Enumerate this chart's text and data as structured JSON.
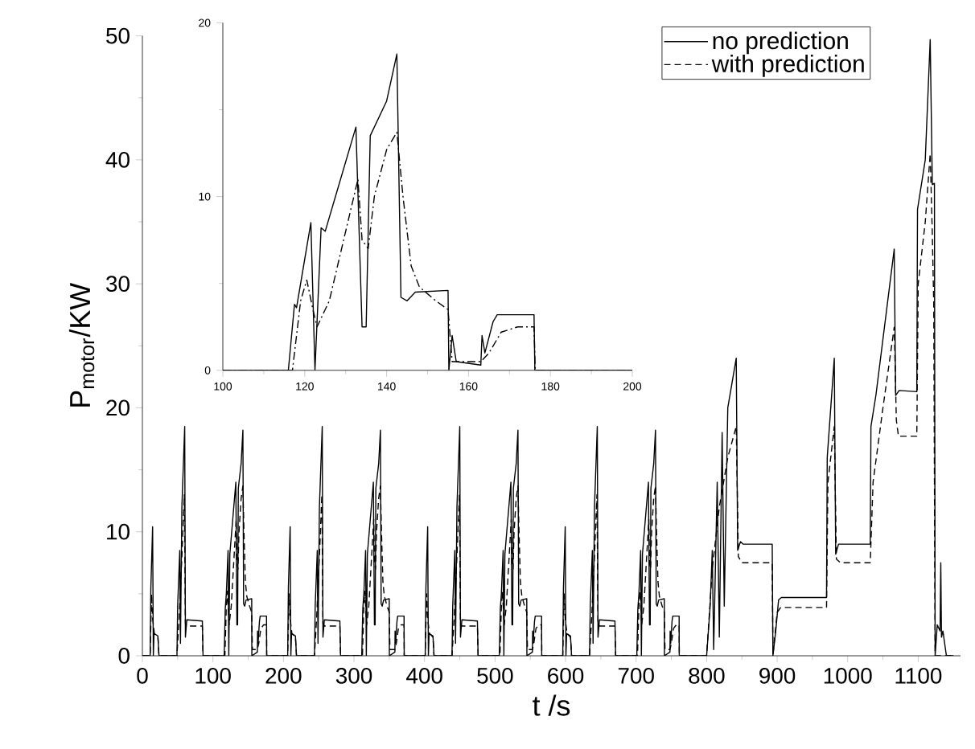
{
  "chart_data": [
    {
      "type": "line",
      "xlabel": "t /s",
      "ylabel": "P$_{motor}$/KW",
      "xlim": [
        0,
        1160
      ],
      "ylim": [
        0,
        50
      ],
      "xticks": [
        0,
        100,
        200,
        300,
        400,
        500,
        600,
        700,
        800,
        900,
        1000,
        1100
      ],
      "yticks": [
        0,
        10,
        20,
        30,
        40,
        50
      ],
      "legend": "top right",
      "grid": false,
      "series": [
        {
          "name": "no prediction",
          "color": "#000000",
          "line_style": "solid",
          "x": [
            0,
            11,
            12,
            14.5,
            15.5,
            16.5,
            22,
            23.5,
            49,
            50,
            53,
            54,
            56,
            60,
            61,
            63,
            85,
            86,
            116,
            117.5,
            119,
            121.5,
            122.5,
            124,
            132.5,
            134,
            135,
            136,
            140,
            142.5,
            143.5,
            145,
            147,
            155,
            155.2,
            163,
            163.3,
            164,
            166,
            167,
            176,
            176.2,
            195,
            206,
            207,
            209.5,
            210.5,
            211.5,
            217,
            218.5,
            244,
            245,
            248,
            249,
            251,
            255,
            256,
            258,
            280,
            281,
            311,
            312.5,
            314,
            316.5,
            317.5,
            319,
            327.5,
            329,
            330,
            331,
            335,
            337.5,
            338.5,
            340,
            342,
            350,
            350.2,
            358,
            358.3,
            359,
            361,
            362,
            371,
            371.2,
            390,
            401,
            402,
            404.5,
            405.5,
            406.5,
            412,
            413.5,
            439,
            440,
            443,
            444,
            446,
            450,
            451,
            453,
            475,
            476,
            506,
            507.5,
            509,
            511.5,
            512.5,
            514,
            522.5,
            524,
            525,
            526,
            530,
            532.5,
            533.5,
            535,
            537,
            545,
            545.2,
            553,
            553.3,
            554,
            556,
            557,
            566,
            566.2,
            585,
            596,
            597,
            599.5,
            600.5,
            601.5,
            607,
            608.5,
            634,
            635,
            638,
            639,
            641,
            645,
            646,
            648,
            670,
            671,
            701,
            702.5,
            704,
            706.5,
            707.5,
            709,
            717.5,
            719,
            720,
            721,
            725,
            727.5,
            728.5,
            730,
            732,
            740,
            740.2,
            748,
            748.3,
            749,
            751,
            752,
            761,
            761.2,
            780,
            800,
            805,
            808,
            810,
            815,
            818,
            822,
            825,
            830,
            842,
            844,
            848,
            852,
            893,
            894,
            898,
            902,
            906,
            970,
            971,
            981,
            983,
            987,
            1032,
            1033,
            1040,
            1066,
            1068,
            1073,
            1098,
            1099,
            1110,
            1117,
            1120,
            1123,
            1124,
            1127,
            1131,
            1132,
            1133,
            1135,
            1140,
            1150
          ],
          "values": [
            0,
            0,
            5.5,
            10.4,
            0,
            1.8,
            1.6,
            0,
            0,
            4,
            8.5,
            1,
            12,
            18.5,
            1.5,
            2.9,
            2.8,
            0,
            0,
            3.8,
            5,
            8.5,
            0,
            8.2,
            14,
            2.5,
            2.5,
            13.5,
            15.5,
            18.2,
            4.2,
            4.0,
            4.5,
            4.6,
            0,
            0.3,
            2,
            1,
            2.8,
            3.2,
            3.2,
            0,
            0,
            0,
            5.5,
            10.4,
            0,
            1.8,
            1.6,
            0,
            0,
            4,
            8.5,
            1,
            12,
            18.5,
            1.5,
            2.9,
            2.8,
            0,
            0,
            3.8,
            5,
            8.5,
            0,
            8.2,
            14,
            2.5,
            2.5,
            13.5,
            15.5,
            18.2,
            4.2,
            4.0,
            4.5,
            4.6,
            0,
            0.3,
            2,
            1,
            2.8,
            3.2,
            3.2,
            0,
            0,
            0,
            5.5,
            10.4,
            0,
            1.8,
            1.6,
            0,
            0,
            4,
            8.5,
            1,
            12,
            18.5,
            1.5,
            2.9,
            2.8,
            0,
            0,
            3.8,
            5,
            8.5,
            0,
            8.2,
            14,
            2.5,
            2.5,
            13.5,
            15.5,
            18.2,
            4.2,
            4.0,
            4.5,
            4.6,
            0,
            0.3,
            2,
            1,
            2.8,
            3.2,
            3.2,
            0,
            0,
            0,
            5.5,
            10.4,
            0,
            1.8,
            1.6,
            0,
            0,
            4,
            8.5,
            1,
            12,
            18.5,
            1.5,
            2.9,
            2.8,
            0,
            0,
            3.8,
            5,
            8.5,
            0,
            8.2,
            14,
            2.5,
            2.5,
            13.5,
            15.5,
            18.2,
            4.2,
            4.0,
            4.5,
            4.6,
            0,
            0.3,
            2,
            1,
            2.8,
            3.2,
            3.2,
            0,
            0,
            0,
            4,
            8.5,
            0.5,
            14,
            1.5,
            18,
            4,
            20,
            24,
            8.5,
            9.2,
            9,
            9,
            0,
            2,
            4.5,
            4.7,
            4.7,
            16,
            24,
            8.2,
            9,
            9,
            18.5,
            21,
            32.8,
            21,
            21.4,
            21.3,
            36,
            40,
            49.7,
            38,
            38.1,
            0,
            2.5,
            2,
            7.5,
            1.5,
            2,
            0,
            0
          ]
        },
        {
          "name": "with prediction",
          "color": "#000000",
          "line_style": "dashed",
          "x": [
            0,
            11,
            13,
            14.5,
            17,
            22,
            23.5,
            49,
            52,
            56,
            59.5,
            61,
            63,
            85,
            86,
            117,
            119,
            120.5,
            122,
            123,
            126,
            130,
            133,
            134,
            135.5,
            137,
            140,
            142.5,
            144,
            146,
            148,
            152,
            155,
            156,
            163,
            165,
            168,
            172,
            176,
            176.3,
            195,
            206,
            208,
            209.5,
            212,
            217,
            218.5,
            244,
            247,
            251,
            254.5,
            256,
            258,
            280,
            281,
            312,
            314,
            315.5,
            317,
            318,
            321,
            325,
            328,
            329,
            330.5,
            332,
            335,
            337.5,
            339,
            341,
            343,
            347,
            350,
            351,
            358,
            360,
            363,
            367,
            371,
            371.3,
            390,
            401,
            403,
            404.5,
            407,
            412,
            413.5,
            439,
            442,
            446,
            449.5,
            451,
            453,
            475,
            476,
            507,
            509,
            510.5,
            512,
            513,
            516,
            520,
            523,
            524,
            525.5,
            527,
            530,
            532.5,
            534,
            536,
            538,
            542,
            545,
            546,
            553,
            555,
            558,
            562,
            566,
            566.3,
            585,
            596,
            598,
            599.5,
            602,
            607,
            608.5,
            634,
            637,
            641,
            644.5,
            646,
            648,
            670,
            671,
            702,
            704,
            705.5,
            707,
            708,
            711,
            715,
            718,
            719,
            720.5,
            722,
            725,
            727.5,
            729,
            731,
            733,
            737,
            740,
            741,
            748,
            750,
            753,
            757,
            761,
            761.3,
            780,
            800,
            808,
            818,
            830,
            842,
            845,
            850,
            893,
            894,
            900,
            905,
            970,
            972,
            981,
            984,
            990,
            1032,
            1036,
            1050,
            1066,
            1069,
            1072,
            1098,
            1100,
            1110,
            1117,
            1120,
            1122,
            1124,
            1150
          ],
          "values": [
            0,
            0,
            5,
            3,
            1.8,
            1.5,
            0,
            0,
            3,
            8,
            13,
            2.6,
            2.4,
            2.4,
            0,
            0,
            4,
            5.2,
            3.5,
            2.5,
            4,
            8,
            11,
            7.5,
            7,
            10,
            12.7,
            13.7,
            10,
            6,
            4.8,
            4,
            3.5,
            0.5,
            0.5,
            1,
            2.2,
            2.5,
            2.5,
            0,
            0,
            0,
            5,
            3,
            1.8,
            1.5,
            0,
            0,
            3,
            8,
            13,
            2.6,
            2.4,
            2.4,
            0,
            0,
            4,
            5.2,
            3.5,
            2.5,
            4,
            8,
            11,
            7.5,
            7,
            10,
            12.7,
            13.7,
            10,
            6,
            4.8,
            4,
            3.5,
            0.5,
            0.5,
            1,
            2.2,
            2.5,
            2.5,
            0,
            0,
            0,
            5,
            3,
            1.8,
            1.5,
            0,
            0,
            3,
            8,
            13,
            2.6,
            2.4,
            2.4,
            0,
            0,
            4,
            5.2,
            3.5,
            2.5,
            4,
            8,
            11,
            7.5,
            7,
            10,
            12.7,
            13.7,
            10,
            6,
            4.8,
            4,
            3.5,
            0.5,
            0.5,
            1,
            2.2,
            2.5,
            2.5,
            0,
            0,
            0,
            5,
            3,
            1.8,
            1.5,
            0,
            0,
            3,
            8,
            13,
            2.6,
            2.4,
            2.4,
            0,
            0,
            4,
            5.2,
            3.5,
            2.5,
            4,
            8,
            11,
            7.5,
            7,
            10,
            12.7,
            13.7,
            10,
            6,
            4.8,
            4,
            3.5,
            0.5,
            0.5,
            1,
            2.2,
            2.5,
            2.5,
            0,
            0,
            0,
            7,
            12,
            16,
            18.5,
            8,
            7.5,
            7.5,
            0,
            3.5,
            3.9,
            3.9,
            14,
            18.5,
            7.8,
            7.5,
            7.5,
            14,
            20,
            26.5,
            19,
            17.7,
            17.7,
            30,
            35,
            40.5,
            34,
            28.5,
            0,
            0
          ]
        }
      ]
    },
    {
      "type": "line",
      "xlim": [
        100,
        200
      ],
      "ylim": [
        0,
        20
      ],
      "xticks": [
        100,
        120,
        140,
        160,
        180,
        200
      ],
      "yticks": [
        0,
        10,
        20
      ],
      "grid": false,
      "series": [
        {
          "color": "#000000",
          "line_style": "solid",
          "x": [
            100,
            116,
            117.5,
            118,
            119,
            121.5,
            122.5,
            124,
            125,
            132.5,
            134,
            135,
            136,
            140,
            142.5,
            143.5,
            145,
            147,
            155,
            155.2,
            156,
            157,
            163,
            163.3,
            164,
            166,
            167,
            176,
            176.2,
            200
          ],
          "values": [
            0,
            0,
            3.8,
            3.6,
            5,
            8.5,
            0,
            8.2,
            8,
            14,
            2.5,
            2.5,
            13.5,
            15.5,
            18.2,
            4.2,
            4.0,
            4.5,
            4.6,
            0,
            2,
            0.5,
            0.3,
            2,
            1,
            2.8,
            3.2,
            3.2,
            0,
            0
          ]
        },
        {
          "color": "#000000",
          "line_style": "dashdot",
          "x": [
            100,
            117,
            119,
            120.5,
            122,
            123,
            126,
            130,
            133,
            134,
            135.5,
            137,
            140,
            142.5,
            144,
            146,
            148,
            152,
            155,
            156,
            163,
            165,
            168,
            172,
            176,
            176.3,
            200
          ],
          "values": [
            0,
            0,
            4,
            5.2,
            3.5,
            2.5,
            4,
            8,
            11,
            7.5,
            7,
            10,
            12.7,
            13.7,
            10,
            6,
            4.8,
            4,
            3.5,
            0.5,
            0.5,
            1,
            2.2,
            2.5,
            2.5,
            0,
            0
          ]
        }
      ]
    }
  ]
}
